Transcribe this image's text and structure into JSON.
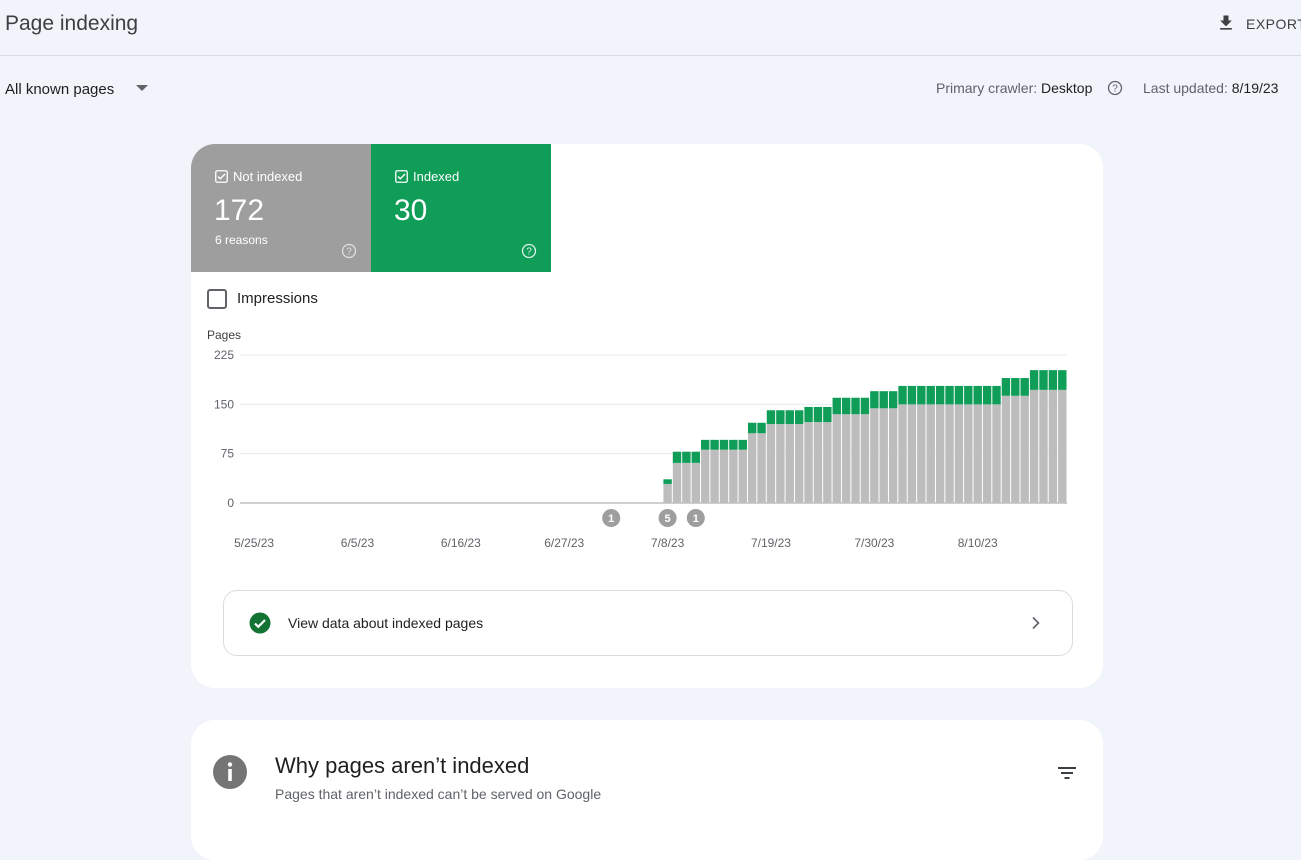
{
  "header": {
    "title": "Page indexing",
    "export": "EXPORT"
  },
  "filter": "All known pages",
  "crawler": {
    "label": "Primary crawler:",
    "value": "Desktop"
  },
  "updated": {
    "label": "Last updated:",
    "value": "8/19/23"
  },
  "cards": [
    {
      "count": 172,
      "note": "6 reasons"
    },
    {
      "count": 30
    }
  ],
  "impressions": "Impressions",
  "chart_data": {
    "type": "stacked-bar",
    "y_label": "Pages",
    "ylim": [
      0,
      225
    ],
    "yticks": [
      0,
      75,
      150,
      225
    ],
    "grid": true,
    "categories": [
      null,
      "5/25/23",
      null,
      null,
      null,
      null,
      null,
      null,
      null,
      null,
      null,
      null,
      "6/5/23",
      null,
      null,
      null,
      null,
      null,
      null,
      null,
      null,
      null,
      null,
      "6/16/23",
      null,
      null,
      null,
      null,
      null,
      null,
      null,
      null,
      null,
      null,
      "6/27/23",
      null,
      null,
      null,
      null,
      null,
      null,
      null,
      null,
      null,
      null,
      "7/8/23",
      null,
      null,
      null,
      null,
      null,
      null,
      null,
      null,
      null,
      null,
      "7/19/23",
      null,
      null,
      null,
      null,
      null,
      null,
      null,
      null,
      null,
      null,
      "7/30/23",
      null,
      null,
      null,
      null,
      null,
      null,
      null,
      null,
      null,
      null,
      "8/10/23",
      null,
      null,
      null,
      null,
      null,
      null,
      null,
      null,
      null
    ],
    "series": [
      {
        "name": "Not indexed",
        "color": "#bdbdbd",
        "values": [
          null,
          null,
          null,
          null,
          null,
          null,
          null,
          null,
          null,
          null,
          null,
          null,
          null,
          null,
          null,
          null,
          null,
          null,
          null,
          null,
          null,
          null,
          null,
          null,
          null,
          null,
          null,
          null,
          null,
          null,
          null,
          null,
          null,
          null,
          null,
          null,
          null,
          null,
          null,
          null,
          null,
          null,
          null,
          null,
          null,
          29,
          61,
          61,
          61,
          81,
          81,
          81,
          81,
          81,
          106,
          106,
          120,
          120,
          120,
          120,
          123,
          123,
          123,
          135,
          135,
          135,
          135,
          144,
          144,
          144,
          150,
          150,
          150,
          150,
          150,
          150,
          150,
          150,
          150,
          150,
          150,
          163,
          163,
          163,
          172,
          172,
          172,
          172
        ]
      },
      {
        "name": "Indexed",
        "color": "#0f9d58",
        "values": [
          null,
          null,
          null,
          null,
          null,
          null,
          null,
          null,
          null,
          null,
          null,
          null,
          null,
          null,
          null,
          null,
          null,
          null,
          null,
          null,
          null,
          null,
          null,
          null,
          null,
          null,
          null,
          null,
          null,
          null,
          null,
          null,
          null,
          null,
          null,
          null,
          null,
          null,
          null,
          null,
          null,
          null,
          null,
          null,
          null,
          7,
          17,
          17,
          17,
          15,
          15,
          15,
          15,
          15,
          16,
          16,
          21,
          21,
          21,
          21,
          23,
          23,
          23,
          25,
          25,
          25,
          25,
          26,
          26,
          26,
          28,
          28,
          28,
          28,
          28,
          28,
          28,
          28,
          28,
          28,
          28,
          27,
          27,
          27,
          30,
          30,
          30,
          30
        ]
      }
    ],
    "annotations": [
      null,
      null,
      null,
      null,
      null,
      null,
      null,
      null,
      null,
      null,
      null,
      null,
      null,
      null,
      null,
      null,
      null,
      null,
      null,
      null,
      null,
      null,
      null,
      null,
      null,
      null,
      null,
      null,
      null,
      null,
      null,
      null,
      null,
      null,
      null,
      null,
      null,
      null,
      null,
      1,
      null,
      null,
      null,
      null,
      null,
      5,
      null,
      null,
      1,
      null,
      null,
      null,
      null,
      null,
      null,
      null,
      null,
      null,
      null,
      null,
      null,
      null,
      null,
      null,
      null,
      null,
      null,
      null,
      null,
      null,
      null,
      null,
      null,
      null,
      null,
      null,
      null,
      null,
      null,
      null,
      null,
      null,
      null,
      null,
      null,
      null,
      null,
      null
    ]
  },
  "link": "View data about indexed pages",
  "section": {
    "title": "Why pages aren’t indexed",
    "subtitle": "Pages that aren’t indexed can’t be served on Google"
  }
}
